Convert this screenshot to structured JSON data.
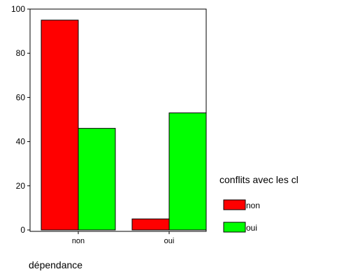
{
  "chart_data": {
    "type": "bar",
    "title": "",
    "categories": [
      "non",
      "oui"
    ],
    "series": [
      {
        "name": "non",
        "color": "#ff0000",
        "values": [
          95,
          5
        ]
      },
      {
        "name": "oui",
        "color": "#00ff00",
        "values": [
          46,
          53
        ]
      }
    ],
    "xlabel": "dépendance",
    "ylabel": "",
    "ylim": [
      0,
      100
    ],
    "yticks": [
      0,
      20,
      40,
      60,
      80,
      100
    ],
    "grid": false,
    "legend": {
      "title": "conflits avec les cl",
      "placement": "right",
      "entries": [
        "non",
        "oui"
      ]
    }
  }
}
